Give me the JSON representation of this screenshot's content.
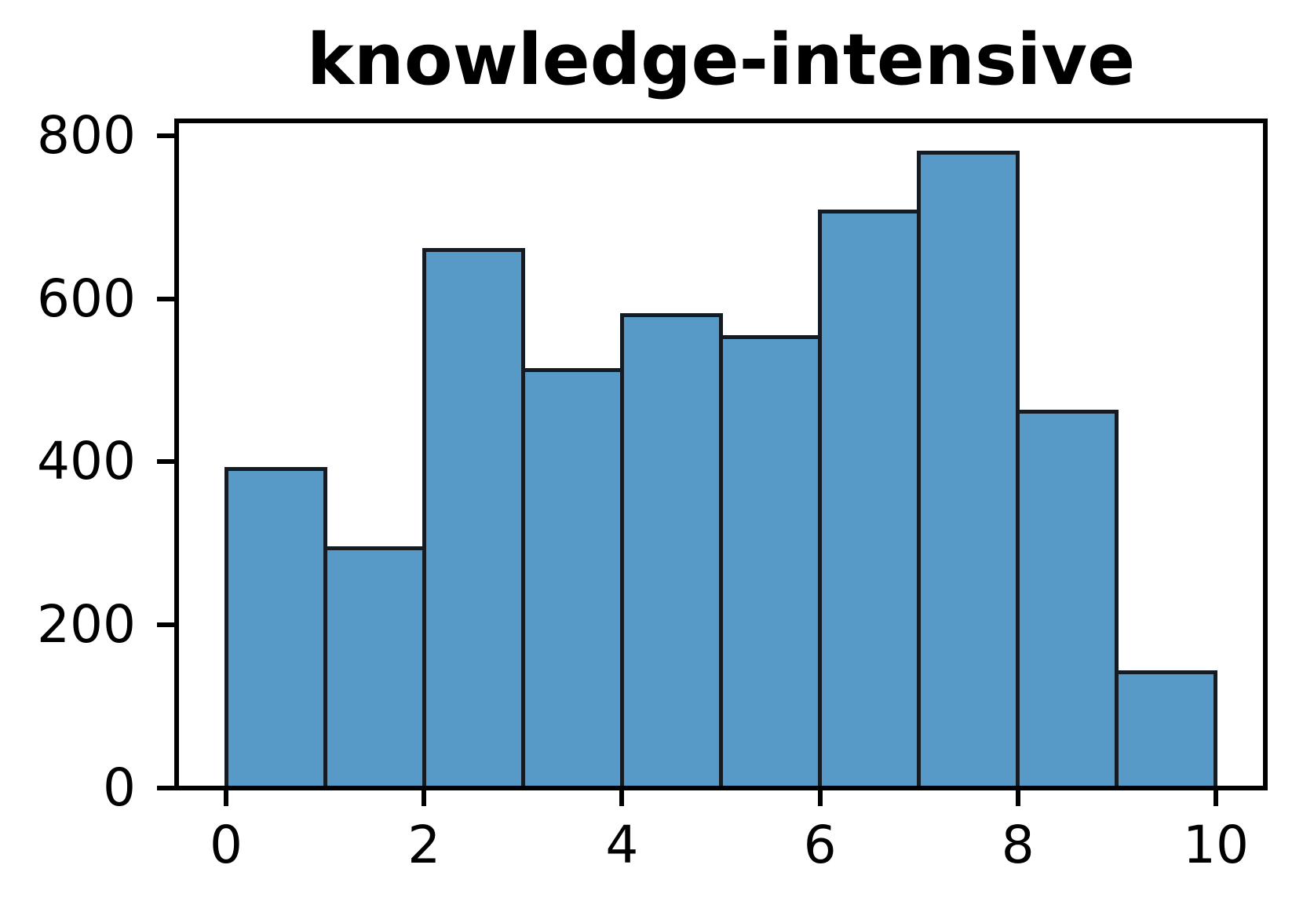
{
  "chart_data": {
    "type": "bar",
    "subtype": "histogram",
    "title": "knowledge-intensive",
    "xlabel": "",
    "ylabel": "",
    "bin_edges": [
      0,
      1,
      2,
      3,
      4,
      5,
      6,
      7,
      8,
      9,
      10
    ],
    "values": [
      391,
      294,
      660,
      512,
      580,
      553,
      707,
      779,
      461,
      142
    ],
    "xlim": [
      -0.5,
      10.5
    ],
    "ylim": [
      0,
      818
    ],
    "xticks": [
      0,
      2,
      4,
      6,
      8,
      10
    ],
    "yticks": [
      0,
      200,
      400,
      600,
      800
    ],
    "grid": false,
    "legend": null,
    "bar_fill_color": "#5799C7",
    "bar_edge_color": "#151B22",
    "axis_color": "#000000",
    "title_color": "#000000",
    "tick_label_color": "#000000"
  }
}
